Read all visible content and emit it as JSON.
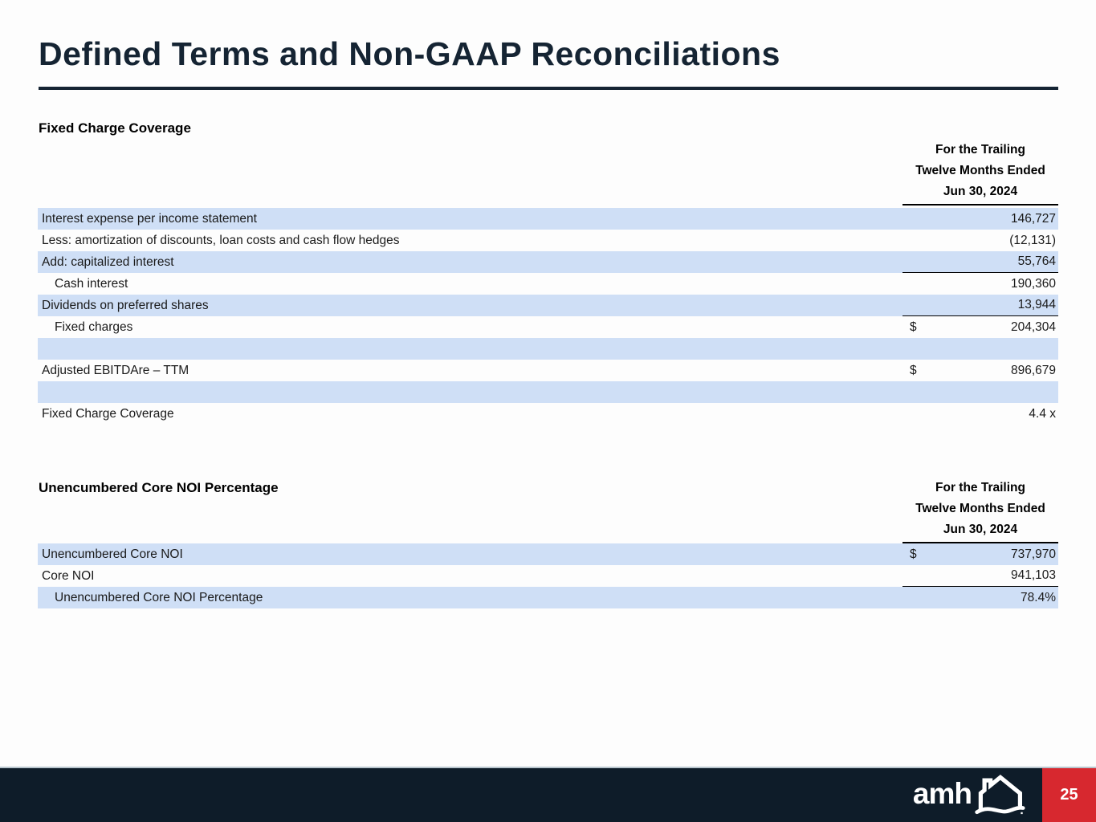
{
  "page": {
    "title": "Defined Terms and Non-GAAP Reconciliations"
  },
  "colors": {
    "navy": "#152433",
    "row_blue": "#CFDFF6",
    "footer_navy": "#0E1C29",
    "red": "#D7282F",
    "text": "#1A1A1A"
  },
  "sections": [
    {
      "heading": "Fixed Charge Coverage",
      "column_header_lines": [
        "For the Trailing",
        "Twelve Months Ended",
        "Jun 30, 2024"
      ],
      "rows": [
        {
          "label": "Interest expense per income statement",
          "dollar": "",
          "value": "146,727",
          "blue": true,
          "indent": false,
          "underline": false
        },
        {
          "label": "Less: amortization of discounts, loan costs and cash flow hedges",
          "dollar": "",
          "value": "(12,131)",
          "blue": false,
          "indent": false,
          "underline": false
        },
        {
          "label": "Add: capitalized interest",
          "dollar": "",
          "value": "55,764",
          "blue": true,
          "indent": false,
          "underline": true
        },
        {
          "label": "Cash interest",
          "dollar": "",
          "value": "190,360",
          "blue": false,
          "indent": true,
          "underline": false
        },
        {
          "label": "Dividends on preferred shares",
          "dollar": "",
          "value": "13,944",
          "blue": true,
          "indent": false,
          "underline": true
        },
        {
          "label": "Fixed charges",
          "dollar": "$",
          "value": "204,304",
          "blue": false,
          "indent": true,
          "underline": false
        },
        {
          "label": "",
          "dollar": "",
          "value": "",
          "blue": true,
          "indent": false,
          "underline": false
        },
        {
          "label": "Adjusted EBITDAre – TTM",
          "dollar": "$",
          "value": "896,679",
          "blue": false,
          "indent": false,
          "underline": false
        },
        {
          "label": "",
          "dollar": "",
          "value": "",
          "blue": true,
          "indent": false,
          "underline": false
        },
        {
          "label": "Fixed Charge Coverage",
          "dollar": "",
          "value": "4.4 x",
          "blue": false,
          "indent": false,
          "underline": false
        }
      ]
    },
    {
      "heading": "Unencumbered Core NOI Percentage",
      "column_header_lines": [
        "For the Trailing",
        "Twelve Months Ended",
        "Jun 30, 2024"
      ],
      "rows": [
        {
          "label": "Unencumbered Core NOI",
          "dollar": "$",
          "value": "737,970",
          "blue": true,
          "indent": false,
          "underline": false
        },
        {
          "label": "Core NOI",
          "dollar": "",
          "value": "941,103",
          "blue": false,
          "indent": false,
          "underline": true
        },
        {
          "label": "Unencumbered Core NOI Percentage",
          "dollar": "",
          "value": "78.4%",
          "blue": true,
          "indent": true,
          "underline": false
        }
      ]
    }
  ],
  "footer": {
    "logo_text": "amh",
    "page_number": "25"
  }
}
